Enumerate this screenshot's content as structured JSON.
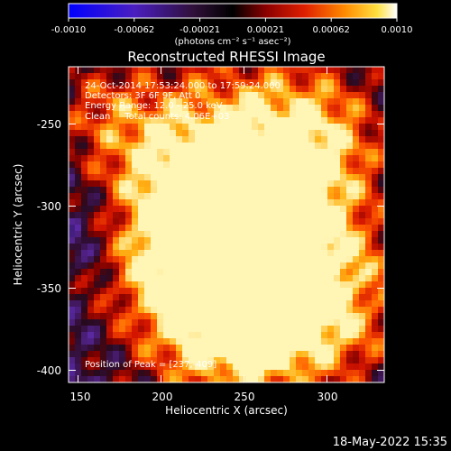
{
  "colorbar": {
    "ticks": [
      "-0.0010",
      "-0.00062",
      "-0.00021",
      "0.00021",
      "0.00062",
      "0.0010"
    ],
    "units_label": "(photons cm⁻² s⁻¹ asec⁻²)"
  },
  "title": "Reconstructed RHESSI Image",
  "annotations": {
    "time_range": "24-Oct-2014 17:53:24.000 to 17:59:24.000",
    "detectors": "Detectors: 3F 6F 9F, Att 0",
    "energy": "Energy Range: 12.0 - 25.0 keV",
    "method_counts": "Clean     Total counts: 4.06E+03",
    "peak": "Position of Peak = [237,-409]"
  },
  "axes": {
    "x_label": "Heliocentric X (arcsec)",
    "y_label": "Heliocentric Y (arcsec)",
    "x_ticks": [
      "150",
      "200",
      "250",
      "300"
    ],
    "y_ticks": [
      "-250",
      "-300",
      "-350",
      "-400"
    ]
  },
  "timestamp": "18-May-2022 15:35",
  "colors": {
    "background": "#000000",
    "foreground": "#ffffff",
    "colormap": [
      "#0000ff",
      "#3a1ad0",
      "#5c2aa8",
      "#3a1a4a",
      "#200020",
      "#7a0000",
      "#d01000",
      "#ff4a00",
      "#ff9a00",
      "#ffe040",
      "#ffffff"
    ]
  }
}
